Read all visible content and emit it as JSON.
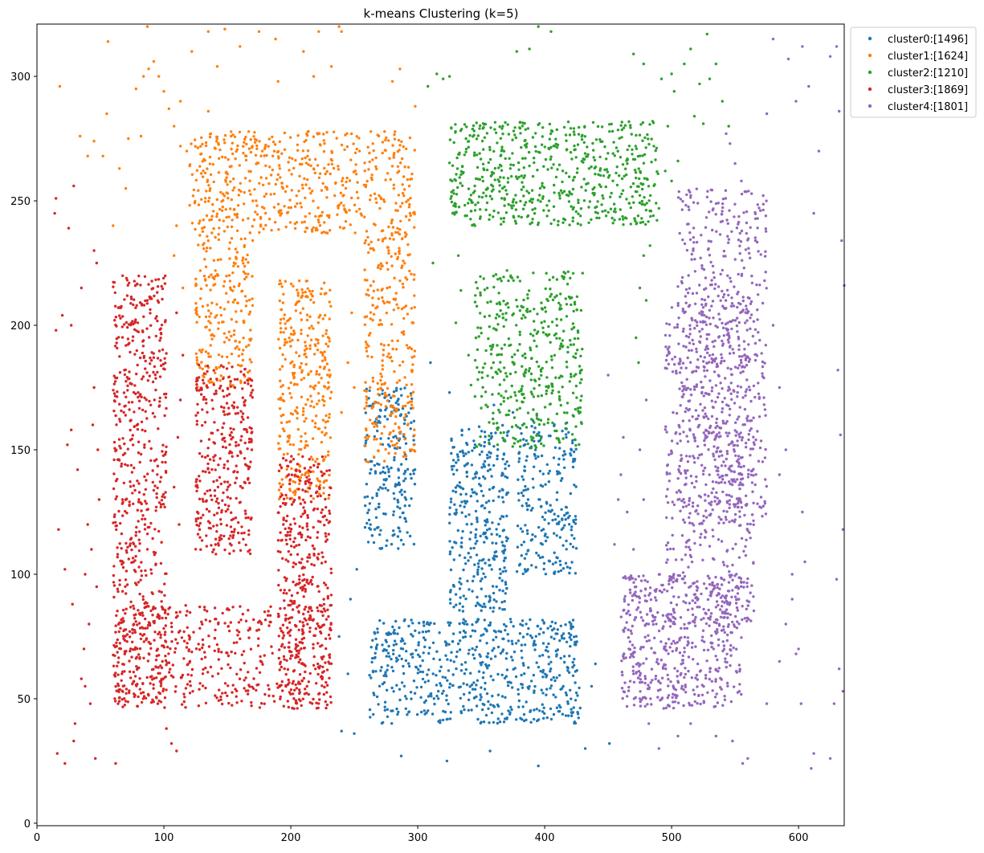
{
  "chart_data": {
    "type": "scatter",
    "title": "k-means Clustering (k=5)",
    "xlabel": "",
    "ylabel": "",
    "xlim": [
      0,
      636
    ],
    "ylim": [
      -1,
      321
    ],
    "xticks": [
      0,
      100,
      200,
      300,
      400,
      500,
      600
    ],
    "yticks": [
      0,
      50,
      100,
      150,
      200,
      250,
      300
    ],
    "grid": false,
    "legend_position": "outside-top-right",
    "series": [
      {
        "name": "cluster0:[1496]",
        "count": 1496,
        "color": "#1f77b4",
        "regions": [
          {
            "x": [
              258,
              298
            ],
            "y": [
              110,
              175
            ],
            "n": 220
          },
          {
            "x": [
              325,
              372
            ],
            "y": [
              85,
              160
            ],
            "n": 330
          },
          {
            "x": [
              378,
              425
            ],
            "y": [
              100,
              162
            ],
            "n": 230
          },
          {
            "x": [
              262,
              428
            ],
            "y": [
              40,
              82
            ],
            "n": 620
          }
        ],
        "scatter": [
          [
            240,
            37
          ],
          [
            250,
            36
          ],
          [
            287,
            27
          ],
          [
            323,
            25
          ],
          [
            395,
            23
          ],
          [
            432,
            30
          ],
          [
            451,
            32
          ],
          [
            357,
            29
          ],
          [
            245,
            60
          ],
          [
            238,
            75
          ],
          [
            247,
            90
          ],
          [
            252,
            102
          ],
          [
            440,
            64
          ],
          [
            437,
            55
          ],
          [
            310,
            185
          ],
          [
            325,
            173
          ],
          [
            360,
            168
          ],
          [
            375,
            165
          ]
        ]
      },
      {
        "name": "cluster1:[1624]",
        "count": 1624,
        "color": "#ff7f0e",
        "regions": [
          {
            "x": [
              120,
              298
            ],
            "y": [
              237,
              278
            ],
            "n": 560
          },
          {
            "x": [
              125,
              170
            ],
            "y": [
              175,
              238
            ],
            "n": 230
          },
          {
            "x": [
              190,
              232
            ],
            "y": [
              130,
              218
            ],
            "n": 340
          },
          {
            "x": [
              258,
              298
            ],
            "y": [
              145,
              238
            ],
            "n": 280
          }
        ],
        "scatter": [
          [
            18,
            296
          ],
          [
            34,
            276
          ],
          [
            40,
            268
          ],
          [
            45,
            274
          ],
          [
            55,
            285
          ],
          [
            56,
            314
          ],
          [
            60,
            240
          ],
          [
            72,
            275
          ],
          [
            78,
            295
          ],
          [
            84,
            300
          ],
          [
            88,
            303
          ],
          [
            92,
            306
          ],
          [
            96,
            300
          ],
          [
            100,
            294
          ],
          [
            104,
            287
          ],
          [
            108,
            280
          ],
          [
            113,
            272
          ],
          [
            82,
            276
          ],
          [
            87,
            320
          ],
          [
            70,
            255
          ],
          [
            65,
            263
          ],
          [
            135,
            286
          ],
          [
            142,
            304
          ],
          [
            148,
            319
          ],
          [
            135,
            318
          ],
          [
            160,
            312
          ],
          [
            175,
            318
          ],
          [
            190,
            298
          ],
          [
            188,
            315
          ],
          [
            210,
            310
          ],
          [
            218,
            300
          ],
          [
            222,
            318
          ],
          [
            232,
            304
          ],
          [
            238,
            320
          ],
          [
            240,
            318
          ],
          [
            280,
            298
          ],
          [
            286,
            303
          ],
          [
            298,
            288
          ],
          [
            52,
            268
          ],
          [
            113,
            290
          ],
          [
            118,
            270
          ],
          [
            122,
            310
          ],
          [
            110,
            240
          ],
          [
            108,
            228
          ],
          [
            115,
            215
          ],
          [
            240,
            165
          ],
          [
            245,
            185
          ],
          [
            248,
            205
          ],
          [
            250,
            175
          ]
        ]
      },
      {
        "name": "cluster2:[1210]",
        "count": 1210,
        "color": "#2ca02c",
        "regions": [
          {
            "x": [
              325,
              490
            ],
            "y": [
              240,
              282
            ],
            "n": 620
          },
          {
            "x": [
              345,
              430
            ],
            "y": [
              150,
              222
            ],
            "n": 440
          }
        ],
        "scatter": [
          [
            308,
            296
          ],
          [
            315,
            301
          ],
          [
            320,
            299
          ],
          [
            325,
            300
          ],
          [
            378,
            310
          ],
          [
            388,
            311
          ],
          [
            395,
            320
          ],
          [
            405,
            318
          ],
          [
            470,
            309
          ],
          [
            478,
            305
          ],
          [
            492,
            299
          ],
          [
            500,
            301
          ],
          [
            510,
            305
          ],
          [
            515,
            311
          ],
          [
            522,
            297
          ],
          [
            530,
            299
          ],
          [
            535,
            305
          ],
          [
            540,
            290
          ],
          [
            528,
            317
          ],
          [
            518,
            284
          ],
          [
            525,
            281
          ],
          [
            545,
            280
          ],
          [
            478,
            228
          ],
          [
            475,
            215
          ],
          [
            472,
            195
          ],
          [
            480,
            210
          ],
          [
            474,
            185
          ],
          [
            483,
            232
          ],
          [
            332,
            228
          ],
          [
            334,
            214
          ],
          [
            330,
            201
          ],
          [
            312,
            225
          ],
          [
            490,
            247
          ],
          [
            495,
            262
          ],
          [
            500,
            258
          ],
          [
            505,
            266
          ],
          [
            497,
            280
          ],
          [
            485,
            282
          ],
          [
            502,
            294
          ],
          [
            340,
            188
          ],
          [
            342,
            176
          ],
          [
            345,
            240
          ]
        ]
      },
      {
        "name": "cluster3:[1869]",
        "count": 1869,
        "color": "#d62728",
        "regions": [
          {
            "x": [
              60,
              102
            ],
            "y": [
              48,
              220
            ],
            "n": 620
          },
          {
            "x": [
              125,
              170
            ],
            "y": [
              108,
              185
            ],
            "n": 330
          },
          {
            "x": [
              190,
              232
            ],
            "y": [
              48,
              148
            ],
            "n": 400
          },
          {
            "x": [
              60,
              232
            ],
            "y": [
              46,
              88
            ],
            "n": 460
          }
        ],
        "scatter": [
          [
            14,
            245
          ],
          [
            15,
            198
          ],
          [
            17,
            118
          ],
          [
            20,
            204
          ],
          [
            22,
            102
          ],
          [
            24,
            152
          ],
          [
            27,
            158
          ],
          [
            30,
            40
          ],
          [
            32,
            142
          ],
          [
            35,
            58
          ],
          [
            37,
            70
          ],
          [
            38,
            100
          ],
          [
            40,
            120
          ],
          [
            41,
            80
          ],
          [
            43,
            110
          ],
          [
            45,
            175
          ],
          [
            47,
            95
          ],
          [
            48,
            150
          ],
          [
            35,
            215
          ],
          [
            28,
            88
          ],
          [
            29,
            33
          ],
          [
            15,
            251
          ],
          [
            25,
            239
          ],
          [
            29,
            256
          ],
          [
            16,
            28
          ],
          [
            22,
            24
          ],
          [
            62,
            24
          ],
          [
            46,
            26
          ],
          [
            102,
            38
          ],
          [
            106,
            32
          ],
          [
            110,
            29
          ],
          [
            45,
            230
          ],
          [
            47,
            225
          ],
          [
            27,
            200
          ],
          [
            110,
            205
          ],
          [
            115,
            188
          ],
          [
            113,
            170
          ],
          [
            111,
            155
          ],
          [
            108,
            135
          ],
          [
            112,
            120
          ],
          [
            42,
            48
          ],
          [
            38,
            55
          ],
          [
            44,
            160
          ],
          [
            49,
            130
          ]
        ]
      },
      {
        "name": "cluster4:[1801]",
        "count": 1801,
        "color": "#9467bd",
        "regions": [
          {
            "x": [
              505,
              575
            ],
            "y": [
              120,
              255
            ],
            "n": 580
          },
          {
            "x": [
              495,
              565
            ],
            "y": [
              78,
              210
            ],
            "n": 520
          },
          {
            "x": [
              460,
              555
            ],
            "y": [
              46,
              100
            ],
            "n": 520
          }
        ],
        "scatter": [
          [
            543,
            277
          ],
          [
            546,
            273
          ],
          [
            550,
            265
          ],
          [
            555,
            258
          ],
          [
            575,
            285
          ],
          [
            580,
            315
          ],
          [
            592,
            307
          ],
          [
            598,
            290
          ],
          [
            603,
            312
          ],
          [
            608,
            296
          ],
          [
            612,
            245
          ],
          [
            616,
            270
          ],
          [
            625,
            308
          ],
          [
            630,
            312
          ],
          [
            632,
            286
          ],
          [
            634,
            234
          ],
          [
            636,
            216
          ],
          [
            631,
            182
          ],
          [
            633,
            156
          ],
          [
            635,
            118
          ],
          [
            630,
            98
          ],
          [
            632,
            62
          ],
          [
            628,
            48
          ],
          [
            635,
            53
          ],
          [
            612,
            28
          ],
          [
            610,
            22
          ],
          [
            625,
            26
          ],
          [
            602,
            48
          ],
          [
            598,
            68
          ],
          [
            605,
            105
          ],
          [
            603,
            125
          ],
          [
            590,
            150
          ],
          [
            585,
            175
          ],
          [
            580,
            200
          ],
          [
            585,
            140
          ],
          [
            595,
            100
          ],
          [
            470,
            110
          ],
          [
            472,
            95
          ],
          [
            465,
            125
          ],
          [
            460,
            140
          ],
          [
            462,
            155
          ],
          [
            458,
            130
          ],
          [
            455,
            112
          ],
          [
            480,
            170
          ],
          [
            475,
            150
          ],
          [
            478,
            130
          ],
          [
            450,
            180
          ],
          [
            470,
            60
          ],
          [
            475,
            50
          ],
          [
            482,
            40
          ],
          [
            490,
            30
          ],
          [
            505,
            35
          ],
          [
            515,
            40
          ],
          [
            535,
            35
          ],
          [
            548,
            33
          ],
          [
            556,
            24
          ],
          [
            560,
            26
          ],
          [
            575,
            48
          ],
          [
            585,
            65
          ],
          [
            590,
            80
          ],
          [
            595,
            90
          ],
          [
            600,
            70
          ]
        ]
      }
    ]
  }
}
